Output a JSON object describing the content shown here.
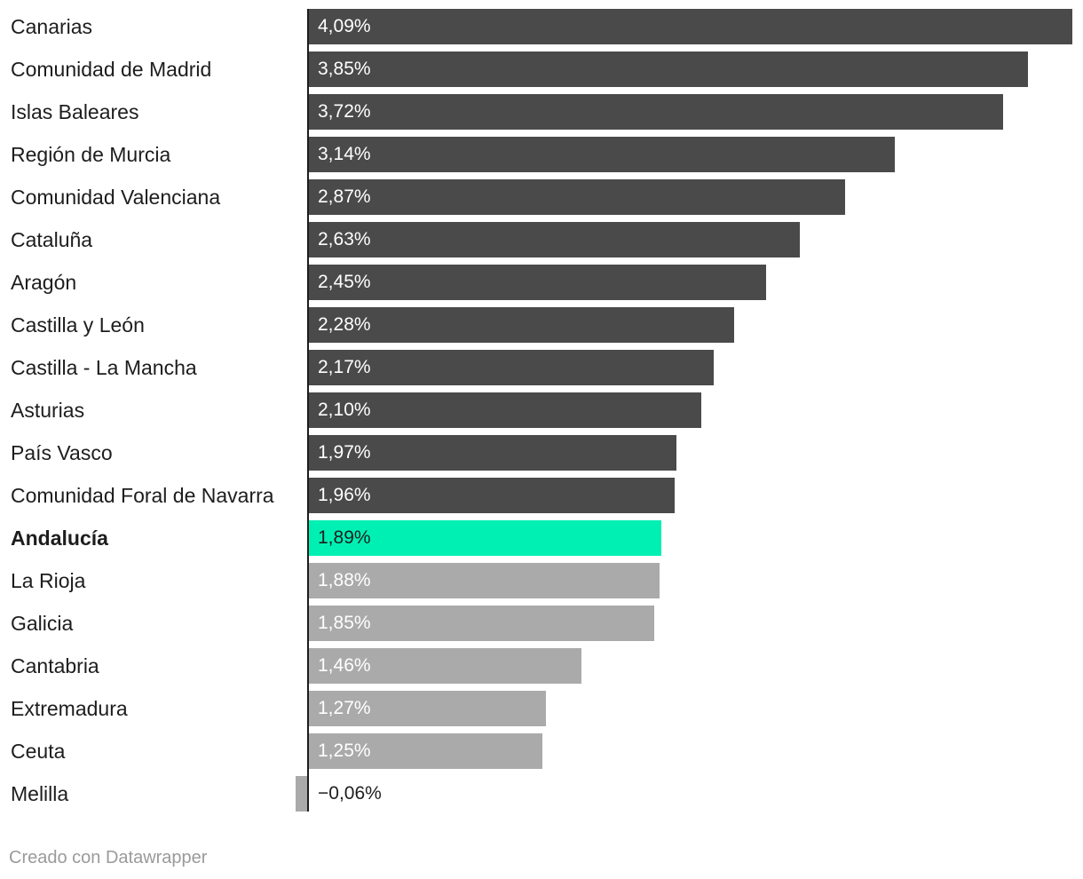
{
  "chart_data": {
    "type": "bar",
    "orientation": "horizontal",
    "categories": [
      "Canarias",
      "Comunidad de Madrid",
      "Islas Baleares",
      "Región de Murcia",
      "Comunidad Valenciana",
      "Cataluña",
      "Aragón",
      "Castilla y León",
      "Castilla - La Mancha",
      "Asturias",
      "País Vasco",
      "Comunidad Foral de Navarra",
      "Andalucía",
      "La Rioja",
      "Galicia",
      "Cantabria",
      "Extremadura",
      "Ceuta",
      "Melilla"
    ],
    "values": [
      4.09,
      3.85,
      3.72,
      3.14,
      2.87,
      2.63,
      2.45,
      2.28,
      2.17,
      2.1,
      1.97,
      1.96,
      1.89,
      1.88,
      1.85,
      1.46,
      1.27,
      1.25,
      -0.06
    ],
    "value_labels": [
      "4,09%",
      "3,85%",
      "3,72%",
      "3,14%",
      "2,87%",
      "2,63%",
      "2,45%",
      "2,28%",
      "2,17%",
      "2,10%",
      "1,97%",
      "1,96%",
      "1,89%",
      "1,88%",
      "1,85%",
      "1,46%",
      "1,27%",
      "1,25%",
      "−0,06%"
    ],
    "highlight": "Andalucía",
    "colors": {
      "above": "#4a4a4a",
      "highlight": "#00f0b4",
      "below": "#aaaaaa",
      "axis": "#1d1d1d"
    },
    "xlim": [
      -0.06,
      4.09
    ],
    "grid": false,
    "legend": "none"
  },
  "footer": {
    "credit": "Creado con Datawrapper"
  }
}
